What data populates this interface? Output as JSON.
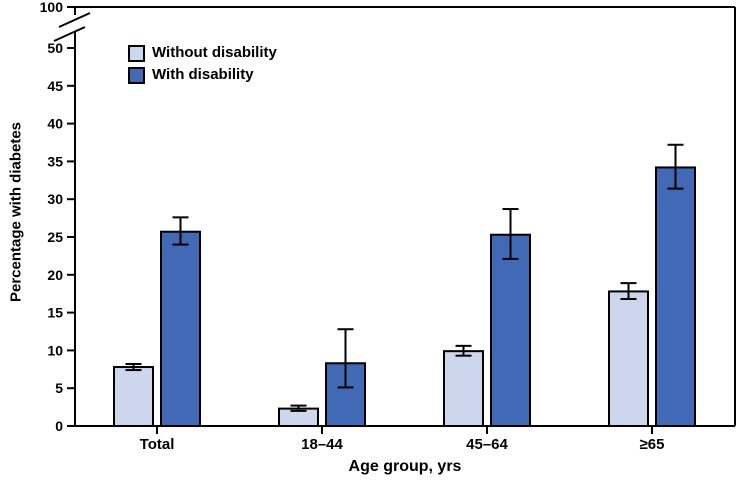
{
  "chart_data": {
    "type": "bar",
    "title": "",
    "xlabel": "Age group, yrs",
    "ylabel": "Percentage with diabetes",
    "categories": [
      "Total",
      "18–44",
      "45–64",
      "≥65"
    ],
    "series": [
      {
        "name": "Without disability",
        "color": "#ccd7ee",
        "values": [
          7.8,
          2.3,
          9.9,
          17.8
        ],
        "ci_low": [
          7.4,
          2.0,
          9.3,
          16.8
        ],
        "ci_high": [
          8.2,
          2.7,
          10.6,
          18.9
        ]
      },
      {
        "name": "With disability",
        "color": "#4169b5",
        "values": [
          25.7,
          8.3,
          25.3,
          34.2
        ],
        "ci_low": [
          24.0,
          5.1,
          22.1,
          31.4
        ],
        "ci_high": [
          27.6,
          12.8,
          28.7,
          37.2
        ]
      }
    ],
    "y_ticks": [
      0,
      5,
      10,
      15,
      20,
      25,
      30,
      35,
      40,
      45,
      50,
      100
    ],
    "y_axis_break": {
      "lower": 50,
      "upper": 100
    },
    "ylim": [
      0,
      100
    ],
    "grid": false,
    "error_bars": true,
    "legend_position": "top-left-inside",
    "bar_edge_color": "#000000",
    "axis_color": "#000000",
    "background_color": "#ffffff"
  }
}
